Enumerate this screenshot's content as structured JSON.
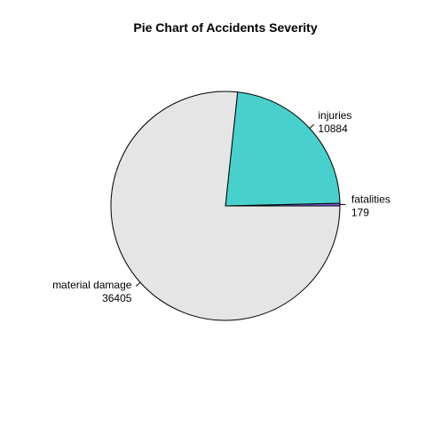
{
  "chart_data": {
    "type": "pie",
    "title": "Pie Chart of Accidents Severity",
    "slices": [
      {
        "label": "fatalities",
        "value": 179,
        "value_text": "179",
        "color": "#7a5cd6"
      },
      {
        "label": "injuries",
        "value": 10884,
        "value_text": "10884",
        "color": "#48d1cc"
      },
      {
        "label": "material damage",
        "value": 36405,
        "value_text": "36405",
        "color": "#e5e5e5"
      }
    ],
    "start": "3 o'clock",
    "direction": "counterclockwise",
    "slice_border_color": "#000000"
  }
}
